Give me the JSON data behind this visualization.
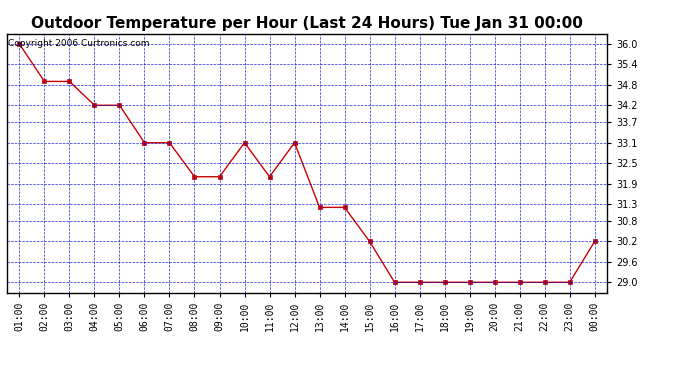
{
  "title": "Outdoor Temperature per Hour (Last 24 Hours) Tue Jan 31 00:00",
  "copyright": "Copyright 2006 Curtronics.com",
  "x_labels": [
    "01:00",
    "02:00",
    "03:00",
    "04:00",
    "05:00",
    "06:00",
    "07:00",
    "08:00",
    "09:00",
    "10:00",
    "11:00",
    "12:00",
    "13:00",
    "14:00",
    "15:00",
    "16:00",
    "17:00",
    "18:00",
    "19:00",
    "20:00",
    "21:00",
    "22:00",
    "23:00",
    "00:00"
  ],
  "y_values": [
    36.0,
    34.9,
    34.9,
    34.2,
    34.2,
    33.1,
    33.1,
    32.1,
    32.1,
    33.1,
    32.1,
    33.1,
    31.2,
    31.2,
    30.2,
    29.0,
    29.0,
    29.0,
    29.0,
    29.0,
    29.0,
    29.0,
    29.0,
    30.2
  ],
  "line_color": "#cc0000",
  "marker_color": "#cc0000",
  "background_color": "#ffffff",
  "grid_color": "#0000cc",
  "y_min": 28.7,
  "y_max": 36.3,
  "y_ticks": [
    29.0,
    29.6,
    30.2,
    30.8,
    31.3,
    31.9,
    32.5,
    33.1,
    33.7,
    34.2,
    34.8,
    35.4,
    36.0
  ],
  "title_fontsize": 11,
  "tick_fontsize": 7,
  "copyright_fontsize": 6.5
}
